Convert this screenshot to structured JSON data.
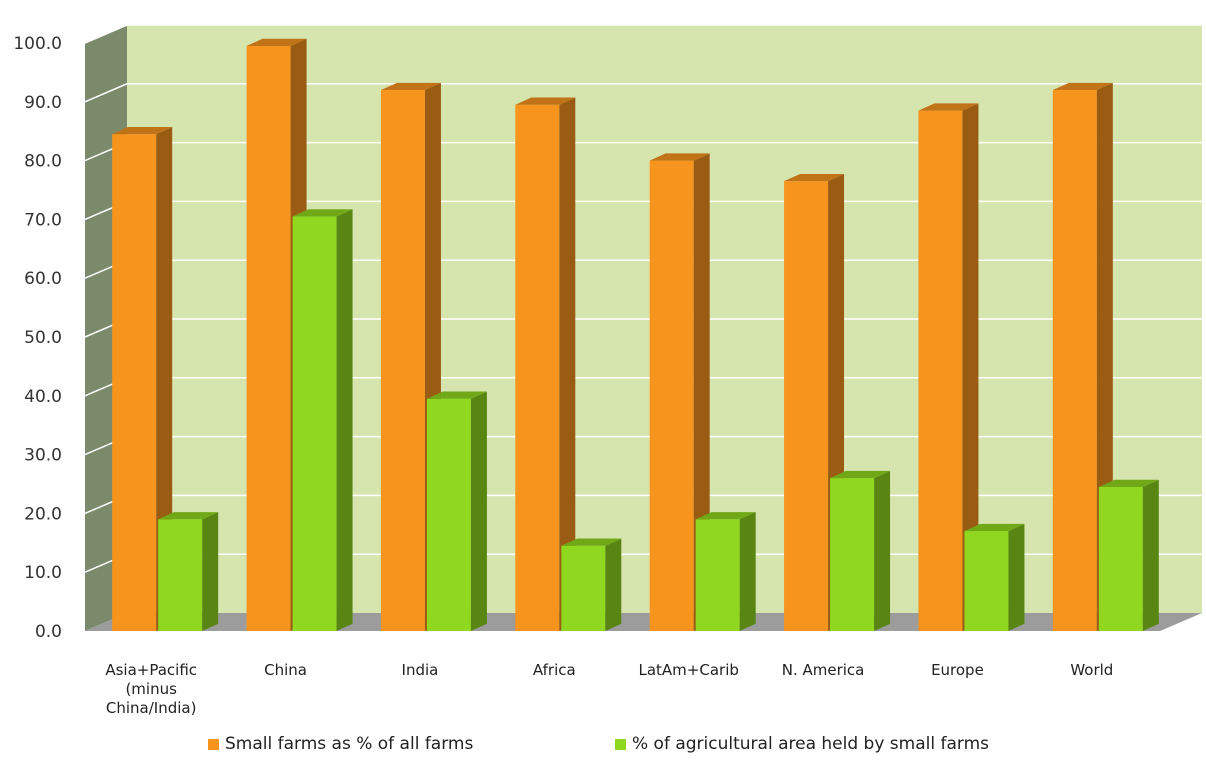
{
  "chart_data": {
    "type": "bar",
    "title": "",
    "xlabel": "",
    "ylabel": "",
    "ylim": [
      0,
      100
    ],
    "y_ticks": [
      "0.0",
      "10.0",
      "20.0",
      "30.0",
      "40.0",
      "50.0",
      "60.0",
      "70.0",
      "80.0",
      "90.0",
      "100.0"
    ],
    "categories": [
      "Asia+Pacific (minus China/India)",
      "China",
      "India",
      "Africa",
      "LatAm+Carib",
      "N. America",
      "Europe",
      "World"
    ],
    "category_lines": [
      [
        "Asia+Pacific",
        "(minus",
        "China/India)"
      ],
      [
        "China"
      ],
      [
        "India"
      ],
      [
        "Africa"
      ],
      [
        "LatAm+Carib"
      ],
      [
        "N. America"
      ],
      [
        "Europe"
      ],
      [
        "World"
      ]
    ],
    "series": [
      {
        "name": "Small farms as % of all farms",
        "color": "#f7941d",
        "values": [
          84.5,
          99.5,
          92.0,
          89.5,
          80.0,
          76.5,
          88.5,
          92.0
        ]
      },
      {
        "name": "% of agricultural area held by small farms",
        "color": "#8fd81f",
        "values": [
          19.0,
          70.5,
          39.5,
          14.5,
          19.0,
          26.0,
          17.0,
          24.5
        ]
      }
    ],
    "grid": true,
    "style": "3d",
    "legend_position": "bottom",
    "colors": {
      "wall": "#d6e4ae",
      "side_wall": "#7b8a6b",
      "floor": "#9c9c9c",
      "gridline": "#ffffff"
    }
  }
}
